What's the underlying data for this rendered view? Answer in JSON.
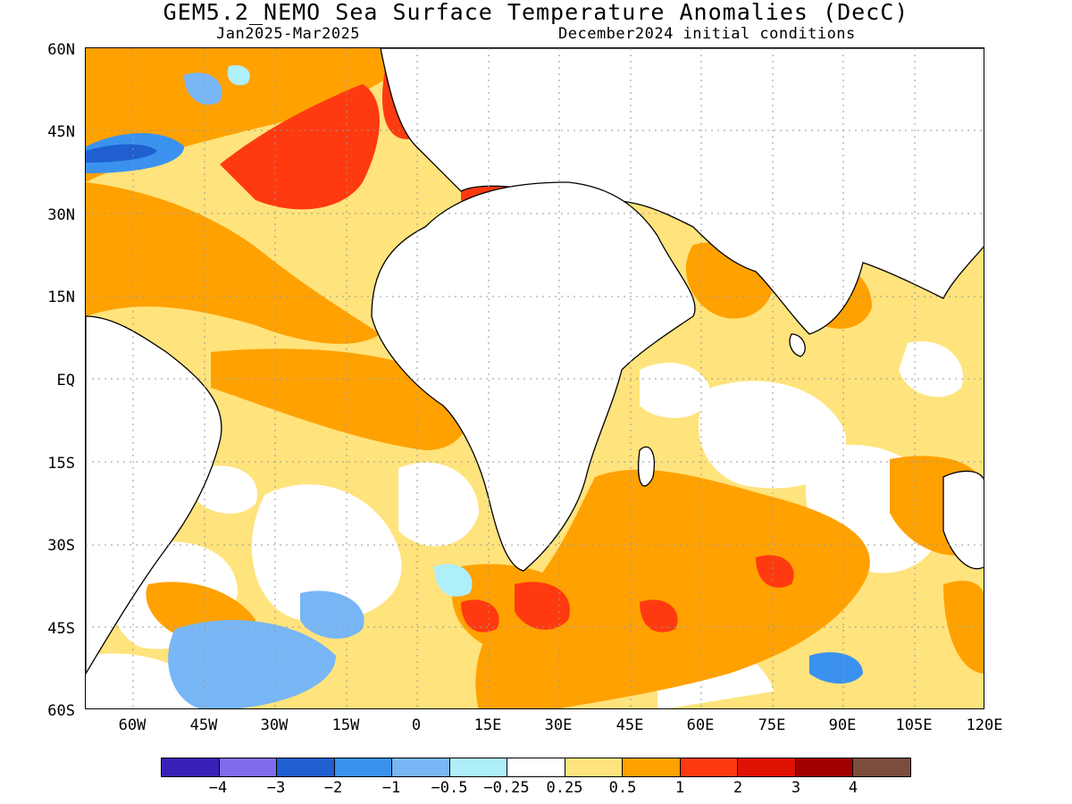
{
  "title": "GEM5.2_NEMO Sea Surface Temperature Anomalies (DecC)",
  "subtitle_left": "Jan2025-Mar2025",
  "subtitle_right": "December2024 initial conditions",
  "lat_labels": [
    "60N",
    "45N",
    "30N",
    "15N",
    "EQ",
    "15S",
    "30S",
    "45S",
    "60S"
  ],
  "lon_labels": [
    "60W",
    "45W",
    "30W",
    "15W",
    "0",
    "15E",
    "30E",
    "45E",
    "60E",
    "75E",
    "90E",
    "105E",
    "120E"
  ],
  "colorbar": {
    "colors": [
      "#3a1fb8",
      "#7f6cea",
      "#1f5fd0",
      "#3b92ee",
      "#78b6f6",
      "#aeeffa",
      "#ffffff",
      "#ffe37c",
      "#ffa100",
      "#ff3a10",
      "#df1204",
      "#a20000",
      "#7b4d3e"
    ],
    "labels": [
      "−4",
      "−3",
      "−2",
      "−1",
      "−0.5",
      "−0.25",
      "0.25",
      "0.5",
      "1",
      "2",
      "3",
      "4"
    ]
  },
  "map": {
    "type": "heatmap",
    "variable": "Sea Surface Temperature Anomalies",
    "units": "DecC",
    "lat_range": [
      -60,
      60
    ],
    "lon_range": [
      -70,
      120
    ],
    "grid": true,
    "land_color": "#ffffff"
  }
}
